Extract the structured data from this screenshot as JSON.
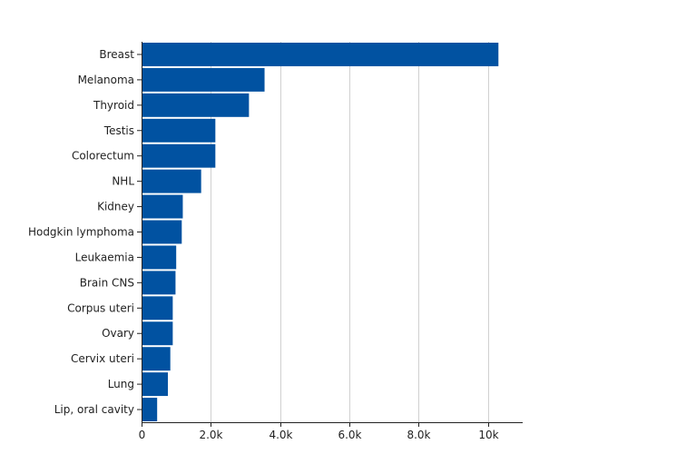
{
  "chart_data": {
    "type": "bar",
    "orientation": "horizontal",
    "categories": [
      "Breast",
      "Melanoma",
      "Thyroid",
      "Testis",
      "Colorectum",
      "NHL",
      "Kidney",
      "Hodgkin lymphoma",
      "Leukaemia",
      "Brain CNS",
      "Corpus uteri",
      "Ovary",
      "Cervix uteri",
      "Lung",
      "Lip, oral cavity"
    ],
    "values": [
      10300,
      3550,
      3100,
      2130,
      2130,
      1720,
      1190,
      1160,
      1000,
      980,
      900,
      900,
      830,
      760,
      450
    ],
    "xlim": [
      0,
      11000
    ],
    "xticks": [
      0,
      2000,
      4000,
      6000,
      8000,
      10000
    ],
    "xtick_labels": [
      "0",
      "2.0k",
      "4.0k",
      "6.0k",
      "8.0k",
      "10k"
    ],
    "grid": "vertical",
    "bar_color": "#0152A1",
    "title": "",
    "xlabel": "",
    "ylabel": ""
  }
}
